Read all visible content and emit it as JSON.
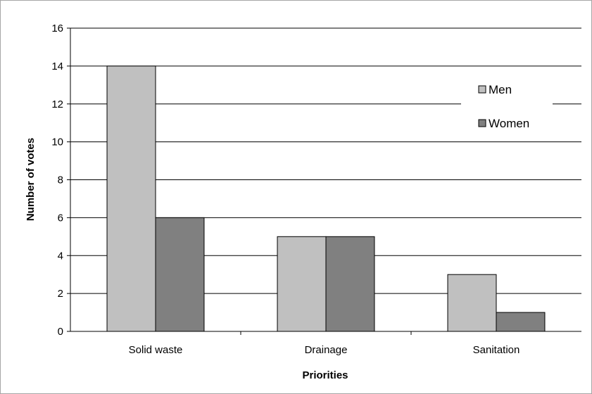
{
  "chart_data": {
    "type": "bar",
    "title": "",
    "xlabel": "Priorities",
    "ylabel": "Number of votes",
    "categories": [
      "Solid waste",
      "Drainage",
      "Sanitation"
    ],
    "series": [
      {
        "name": "Men",
        "values": [
          14,
          5,
          3
        ],
        "color": "#c0c0c0"
      },
      {
        "name": "Women",
        "values": [
          6,
          5,
          1
        ],
        "color": "#808080"
      }
    ],
    "ylim": [
      0,
      16
    ],
    "yticks": [
      0,
      2,
      4,
      6,
      8,
      10,
      12,
      14,
      16
    ],
    "grid": true,
    "legend_position": "right"
  }
}
